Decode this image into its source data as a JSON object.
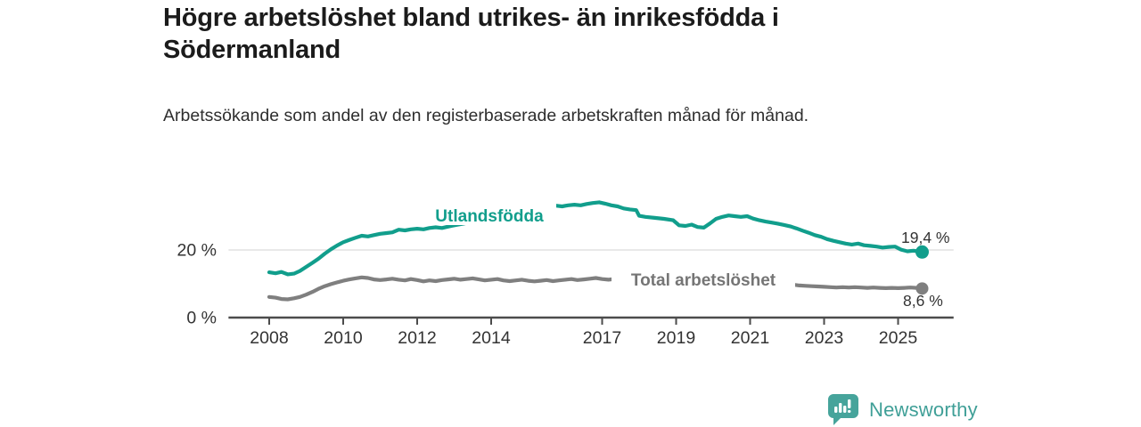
{
  "header": {
    "title": "Högre arbetslöshet bland utrikes- än inrikesfödda i Södermanland",
    "subtitle": "Arbetssökande som andel av den registerbaserade arbetskraften månad för månad."
  },
  "chart_data": {
    "type": "line",
    "title": "Högre arbetslöshet bland utrikes- än inrikesfödda i Södermanland",
    "subtitle": "Arbetssökande som andel av den registerbaserade arbetskraften månad för månad.",
    "unit": "%",
    "grid": "horizontal gridline at 20% only, dark baseline at 0%",
    "legend_position": "inline labels on lines",
    "x_range": [
      2006.9,
      2026.5
    ],
    "y_range": [
      0,
      38
    ],
    "x_ticks": [
      2008,
      2010,
      2012,
      2014,
      2017,
      2019,
      2021,
      2023,
      2025
    ],
    "y_ticks": [
      {
        "value": 20,
        "label": "20 %"
      },
      {
        "value": 0,
        "label": "0 %"
      }
    ],
    "colors": {
      "utlandsfodda": "#119e8c",
      "total": "#7f7f7f",
      "axis": "#4c4c4c",
      "gridline": "#dcdcdc",
      "tick_text": "#333333"
    },
    "series": [
      {
        "name": "Utlandsfödda",
        "color": "#119e8c",
        "end_label": "19,4 %",
        "end_value": 19.4,
        "points": [
          [
            2008.0,
            13.4
          ],
          [
            2008.17,
            13.1
          ],
          [
            2008.33,
            13.5
          ],
          [
            2008.5,
            12.8
          ],
          [
            2008.67,
            13.0
          ],
          [
            2008.83,
            13.8
          ],
          [
            2009.0,
            15.0
          ],
          [
            2009.17,
            16.2
          ],
          [
            2009.33,
            17.4
          ],
          [
            2009.5,
            18.9
          ],
          [
            2009.67,
            20.2
          ],
          [
            2009.83,
            21.3
          ],
          [
            2010.0,
            22.3
          ],
          [
            2010.17,
            23.0
          ],
          [
            2010.33,
            23.6
          ],
          [
            2010.5,
            24.2
          ],
          [
            2010.67,
            24.0
          ],
          [
            2010.83,
            24.4
          ],
          [
            2011.0,
            24.8
          ],
          [
            2011.17,
            25.0
          ],
          [
            2011.33,
            25.2
          ],
          [
            2011.5,
            26.0
          ],
          [
            2011.67,
            25.8
          ],
          [
            2011.83,
            26.1
          ],
          [
            2012.0,
            26.3
          ],
          [
            2012.17,
            26.1
          ],
          [
            2012.33,
            26.5
          ],
          [
            2012.5,
            26.7
          ],
          [
            2012.67,
            26.5
          ],
          [
            2012.83,
            26.9
          ],
          [
            2013.0,
            27.3
          ],
          [
            2013.25,
            27.8
          ],
          [
            2013.5,
            28.4
          ],
          [
            2013.75,
            29.0
          ],
          [
            2014.0,
            29.6
          ],
          [
            2014.25,
            30.2
          ],
          [
            2014.5,
            30.8
          ],
          [
            2014.75,
            31.4
          ],
          [
            2015.0,
            31.9
          ],
          [
            2015.25,
            32.3
          ],
          [
            2015.5,
            32.6
          ],
          [
            2015.75,
            33.1
          ],
          [
            2015.92,
            32.9
          ],
          [
            2016.08,
            33.2
          ],
          [
            2016.25,
            33.4
          ],
          [
            2016.42,
            33.2
          ],
          [
            2016.58,
            33.6
          ],
          [
            2016.75,
            33.9
          ],
          [
            2016.92,
            34.1
          ],
          [
            2017.08,
            33.7
          ],
          [
            2017.25,
            33.2
          ],
          [
            2017.42,
            32.9
          ],
          [
            2017.58,
            32.3
          ],
          [
            2017.75,
            32.0
          ],
          [
            2017.92,
            31.8
          ],
          [
            2018.0,
            30.1
          ],
          [
            2018.17,
            29.8
          ],
          [
            2018.42,
            29.5
          ],
          [
            2018.67,
            29.2
          ],
          [
            2018.92,
            28.8
          ],
          [
            2019.08,
            27.3
          ],
          [
            2019.25,
            27.1
          ],
          [
            2019.42,
            27.5
          ],
          [
            2019.58,
            26.8
          ],
          [
            2019.75,
            26.6
          ],
          [
            2019.92,
            27.9
          ],
          [
            2020.08,
            29.2
          ],
          [
            2020.25,
            29.8
          ],
          [
            2020.42,
            30.2
          ],
          [
            2020.58,
            30.0
          ],
          [
            2020.75,
            29.8
          ],
          [
            2020.92,
            30.0
          ],
          [
            2021.08,
            29.3
          ],
          [
            2021.25,
            28.8
          ],
          [
            2021.42,
            28.4
          ],
          [
            2021.58,
            28.1
          ],
          [
            2021.75,
            27.8
          ],
          [
            2021.92,
            27.4
          ],
          [
            2022.08,
            27.0
          ],
          [
            2022.25,
            26.4
          ],
          [
            2022.42,
            25.7
          ],
          [
            2022.58,
            25.1
          ],
          [
            2022.75,
            24.4
          ],
          [
            2022.92,
            23.9
          ],
          [
            2023.08,
            23.2
          ],
          [
            2023.25,
            22.7
          ],
          [
            2023.42,
            22.3
          ],
          [
            2023.58,
            21.9
          ],
          [
            2023.75,
            21.6
          ],
          [
            2023.92,
            21.9
          ],
          [
            2024.08,
            21.4
          ],
          [
            2024.25,
            21.2
          ],
          [
            2024.42,
            21.0
          ],
          [
            2024.58,
            20.7
          ],
          [
            2024.75,
            20.9
          ],
          [
            2024.92,
            21.0
          ],
          [
            2025.08,
            20.1
          ],
          [
            2025.25,
            19.6
          ],
          [
            2025.42,
            19.8
          ],
          [
            2025.65,
            19.4
          ]
        ]
      },
      {
        "name": "Total arbetslöshet",
        "color": "#7f7f7f",
        "end_label": "8,6 %",
        "end_value": 8.6,
        "points": [
          [
            2008.0,
            6.1
          ],
          [
            2008.17,
            5.9
          ],
          [
            2008.33,
            5.5
          ],
          [
            2008.5,
            5.4
          ],
          [
            2008.67,
            5.7
          ],
          [
            2008.83,
            6.1
          ],
          [
            2009.0,
            6.8
          ],
          [
            2009.17,
            7.6
          ],
          [
            2009.33,
            8.5
          ],
          [
            2009.5,
            9.3
          ],
          [
            2009.67,
            9.9
          ],
          [
            2009.83,
            10.4
          ],
          [
            2010.0,
            10.9
          ],
          [
            2010.17,
            11.3
          ],
          [
            2010.33,
            11.6
          ],
          [
            2010.5,
            11.9
          ],
          [
            2010.67,
            11.7
          ],
          [
            2010.83,
            11.3
          ],
          [
            2011.0,
            11.1
          ],
          [
            2011.17,
            11.3
          ],
          [
            2011.33,
            11.5
          ],
          [
            2011.5,
            11.2
          ],
          [
            2011.67,
            11.0
          ],
          [
            2011.83,
            11.4
          ],
          [
            2012.0,
            11.1
          ],
          [
            2012.17,
            10.7
          ],
          [
            2012.33,
            11.0
          ],
          [
            2012.5,
            10.8
          ],
          [
            2012.67,
            11.1
          ],
          [
            2012.83,
            11.3
          ],
          [
            2013.0,
            11.5
          ],
          [
            2013.17,
            11.2
          ],
          [
            2013.33,
            11.4
          ],
          [
            2013.5,
            11.6
          ],
          [
            2013.67,
            11.3
          ],
          [
            2013.83,
            11.0
          ],
          [
            2014.0,
            11.2
          ],
          [
            2014.17,
            11.4
          ],
          [
            2014.33,
            11.0
          ],
          [
            2014.5,
            10.8
          ],
          [
            2014.67,
            11.0
          ],
          [
            2014.83,
            11.2
          ],
          [
            2015.0,
            10.9
          ],
          [
            2015.17,
            10.7
          ],
          [
            2015.33,
            10.9
          ],
          [
            2015.5,
            11.1
          ],
          [
            2015.67,
            10.8
          ],
          [
            2015.83,
            11.0
          ],
          [
            2016.0,
            11.2
          ],
          [
            2016.17,
            11.4
          ],
          [
            2016.33,
            11.1
          ],
          [
            2016.5,
            11.3
          ],
          [
            2016.67,
            11.5
          ],
          [
            2016.83,
            11.7
          ],
          [
            2017.0,
            11.4
          ],
          [
            2017.17,
            11.2
          ],
          [
            2017.33,
            11.4
          ],
          [
            2017.5,
            11.3
          ],
          [
            2017.67,
            11.1
          ],
          [
            2017.83,
            10.9
          ],
          [
            2018.0,
            11.0
          ],
          [
            2018.17,
            10.8
          ],
          [
            2018.33,
            10.6
          ],
          [
            2018.5,
            10.8
          ],
          [
            2018.67,
            10.6
          ],
          [
            2018.83,
            10.4
          ],
          [
            2019.0,
            10.2
          ],
          [
            2019.17,
            10.4
          ],
          [
            2019.33,
            10.2
          ],
          [
            2019.5,
            10.0
          ],
          [
            2019.67,
            10.2
          ],
          [
            2019.83,
            10.4
          ],
          [
            2020.0,
            10.7
          ],
          [
            2020.17,
            11.0
          ],
          [
            2020.33,
            11.3
          ],
          [
            2020.5,
            11.5
          ],
          [
            2020.67,
            11.3
          ],
          [
            2020.83,
            11.1
          ],
          [
            2021.0,
            10.9
          ],
          [
            2021.17,
            10.7
          ],
          [
            2021.33,
            10.5
          ],
          [
            2021.5,
            10.3
          ],
          [
            2021.67,
            10.1
          ],
          [
            2021.83,
            10.0
          ],
          [
            2022.0,
            9.8
          ],
          [
            2022.17,
            9.7
          ],
          [
            2022.33,
            9.5
          ],
          [
            2022.5,
            9.4
          ],
          [
            2022.67,
            9.3
          ],
          [
            2022.83,
            9.2
          ],
          [
            2023.0,
            9.1
          ],
          [
            2023.17,
            9.0
          ],
          [
            2023.33,
            8.9
          ],
          [
            2023.5,
            9.0
          ],
          [
            2023.67,
            8.9
          ],
          [
            2023.83,
            9.0
          ],
          [
            2024.0,
            8.9
          ],
          [
            2024.17,
            8.8
          ],
          [
            2024.33,
            8.9
          ],
          [
            2024.5,
            8.8
          ],
          [
            2024.67,
            8.7
          ],
          [
            2024.83,
            8.8
          ],
          [
            2025.0,
            8.7
          ],
          [
            2025.17,
            8.8
          ],
          [
            2025.33,
            8.9
          ],
          [
            2025.5,
            8.8
          ],
          [
            2025.65,
            8.6
          ]
        ]
      }
    ]
  },
  "footer": {
    "brand": "Newsworthy",
    "brand_color": "#3f9f97",
    "logo_icon": "bar-chart-speech-bubble-icon",
    "logo_color": "#46a49b"
  }
}
